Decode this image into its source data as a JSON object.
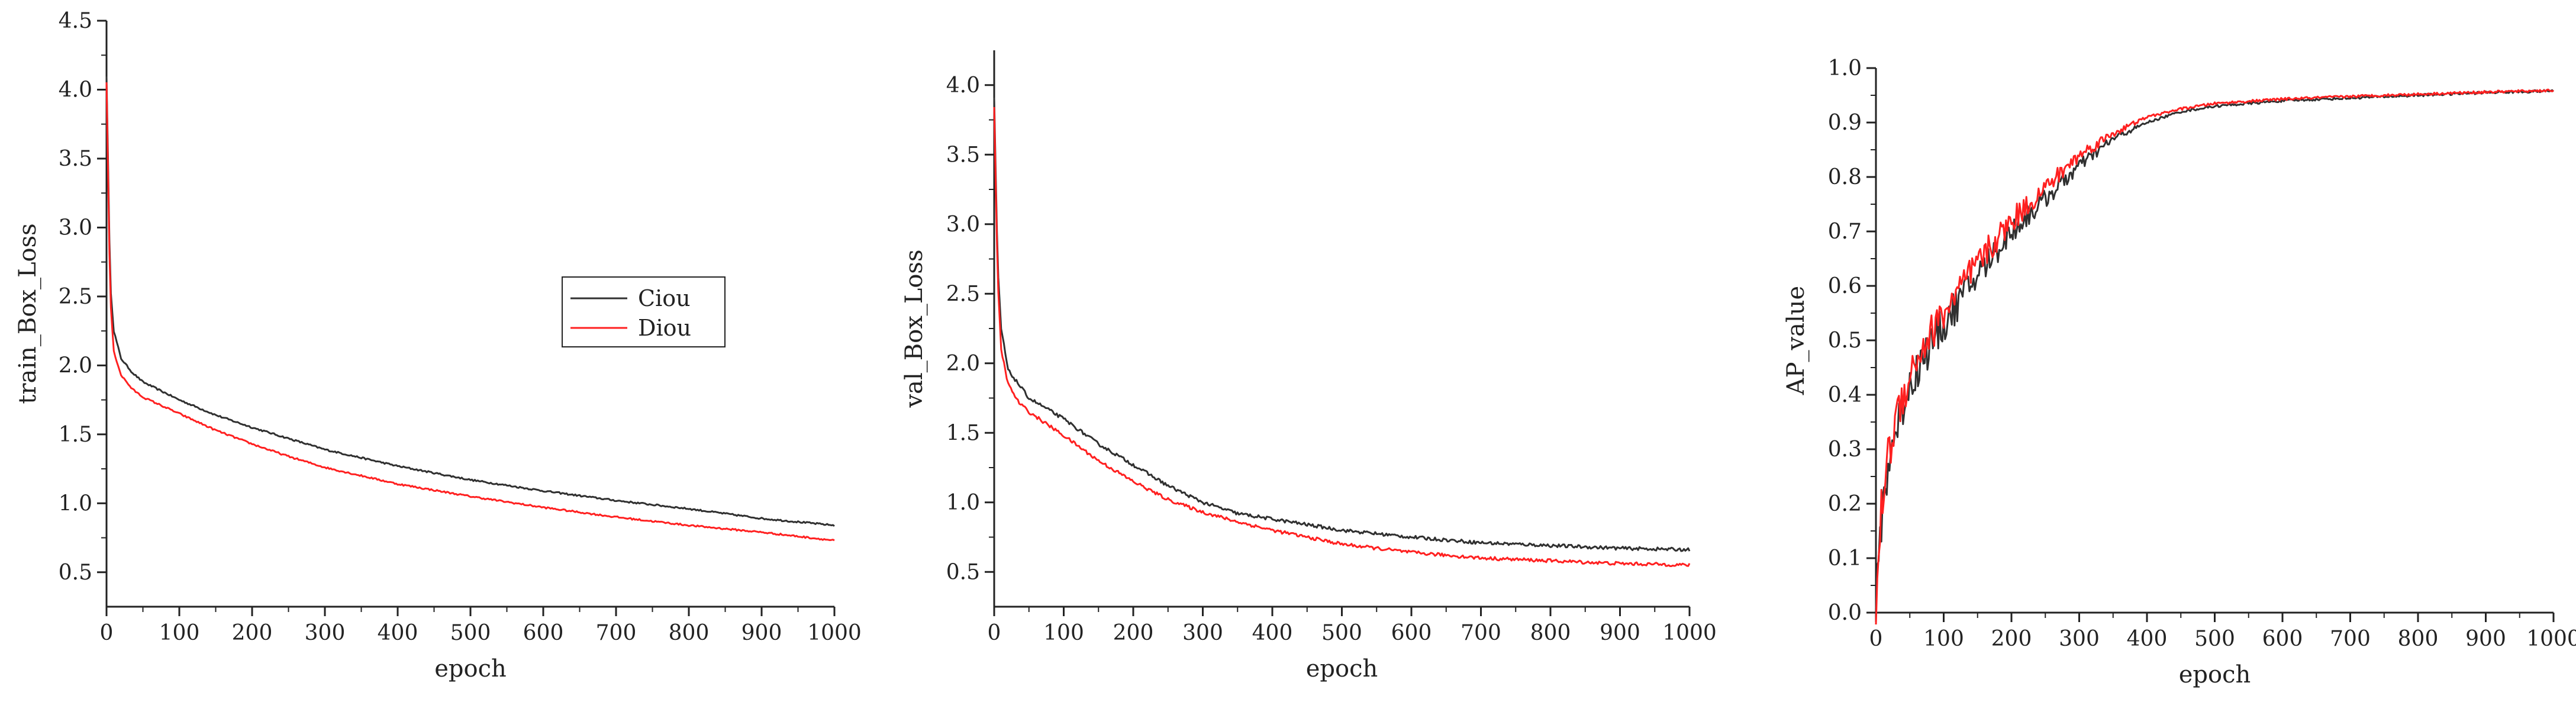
{
  "chart_data": [
    {
      "type": "line",
      "xlabel": "epoch",
      "ylabel": "train_Box_Loss",
      "xlim": [
        0,
        1000
      ],
      "ylim": [
        0.25,
        4.5
      ],
      "xticks": [
        0,
        100,
        200,
        300,
        400,
        500,
        600,
        700,
        800,
        900,
        1000
      ],
      "yticks": [
        0.5,
        1.0,
        1.5,
        2.0,
        2.5,
        3.0,
        3.5,
        4.0,
        4.5
      ],
      "ytick_labels": [
        "0.5",
        "1.0",
        "1.5",
        "2.0",
        "2.5",
        "3.0",
        "3.5",
        "4.0",
        "4.5"
      ],
      "legend": {
        "placement": "center-right",
        "entries": [
          "Ciou",
          "Diou"
        ]
      },
      "series": [
        {
          "name": "Ciou",
          "color": "#303030",
          "x": [
            0,
            5,
            10,
            20,
            35,
            50,
            100,
            150,
            200,
            250,
            300,
            400,
            500,
            600,
            700,
            800,
            900,
            1000
          ],
          "y": [
            4.1,
            2.6,
            2.25,
            2.05,
            1.95,
            1.88,
            1.75,
            1.64,
            1.55,
            1.47,
            1.39,
            1.27,
            1.17,
            1.09,
            1.02,
            0.96,
            0.89,
            0.84
          ]
        },
        {
          "name": "Diou",
          "color": "#ff2020",
          "x": [
            0,
            5,
            10,
            20,
            35,
            50,
            100,
            150,
            200,
            250,
            300,
            400,
            500,
            600,
            700,
            800,
            900,
            1000
          ],
          "y": [
            4.05,
            2.5,
            2.1,
            1.93,
            1.83,
            1.77,
            1.65,
            1.53,
            1.43,
            1.34,
            1.26,
            1.14,
            1.05,
            0.97,
            0.9,
            0.84,
            0.79,
            0.73
          ]
        }
      ]
    },
    {
      "type": "line",
      "xlabel": "epoch",
      "ylabel": "val_Box_Loss",
      "xlim": [
        0,
        1000
      ],
      "ylim": [
        0.25,
        4.25
      ],
      "xticks": [
        0,
        100,
        200,
        300,
        400,
        500,
        600,
        700,
        800,
        900,
        1000
      ],
      "yticks": [
        0.5,
        1.0,
        1.5,
        2.0,
        2.5,
        3.0,
        3.5,
        4.0
      ],
      "ytick_labels": [
        "0.5",
        "1.0",
        "1.5",
        "2.0",
        "2.5",
        "3.0",
        "3.5",
        "4.0"
      ],
      "series": [
        {
          "name": "Ciou",
          "color": "#303030",
          "x": [
            0,
            5,
            10,
            20,
            35,
            50,
            100,
            150,
            200,
            250,
            300,
            350,
            400,
            500,
            600,
            700,
            800,
            900,
            1000
          ],
          "y": [
            3.9,
            2.7,
            2.25,
            1.95,
            1.85,
            1.75,
            1.6,
            1.42,
            1.27,
            1.12,
            1.0,
            0.92,
            0.88,
            0.8,
            0.75,
            0.71,
            0.69,
            0.67,
            0.66
          ]
        },
        {
          "name": "Diou",
          "color": "#ff2020",
          "x": [
            0,
            5,
            10,
            20,
            35,
            50,
            100,
            150,
            200,
            250,
            300,
            350,
            400,
            500,
            600,
            700,
            800,
            900,
            1000
          ],
          "y": [
            3.85,
            2.6,
            2.1,
            1.85,
            1.72,
            1.65,
            1.48,
            1.3,
            1.15,
            1.02,
            0.93,
            0.86,
            0.8,
            0.7,
            0.64,
            0.6,
            0.58,
            0.56,
            0.55
          ]
        }
      ]
    },
    {
      "type": "line",
      "xlabel": "epoch",
      "ylabel": "AP_value",
      "xlim": [
        0,
        1000
      ],
      "ylim": [
        0.0,
        1.0
      ],
      "xticks": [
        0,
        100,
        200,
        300,
        400,
        500,
        600,
        700,
        800,
        900,
        1000
      ],
      "yticks": [
        0.0,
        0.1,
        0.2,
        0.3,
        0.4,
        0.5,
        0.6,
        0.7,
        0.8,
        0.9,
        1.0
      ],
      "ytick_labels": [
        "0.0",
        "0.1",
        "0.2",
        "0.3",
        "0.4",
        "0.5",
        "0.6",
        "0.7",
        "0.8",
        "0.9",
        "1.0"
      ],
      "series": [
        {
          "name": "Ciou",
          "color": "#303030",
          "x": [
            0,
            5,
            10,
            20,
            30,
            50,
            75,
            100,
            150,
            200,
            250,
            300,
            350,
            400,
            450,
            500,
            600,
            700,
            800,
            900,
            1000
          ],
          "y": [
            0.0,
            0.12,
            0.2,
            0.28,
            0.34,
            0.42,
            0.48,
            0.53,
            0.62,
            0.7,
            0.76,
            0.82,
            0.87,
            0.9,
            0.92,
            0.93,
            0.94,
            0.945,
            0.95,
            0.955,
            0.958
          ]
        },
        {
          "name": "Diou",
          "color": "#ff2020",
          "x": [
            0,
            5,
            10,
            20,
            30,
            50,
            75,
            100,
            150,
            200,
            250,
            300,
            350,
            400,
            450,
            500,
            600,
            700,
            800,
            900,
            1000
          ],
          "y": [
            0.0,
            0.13,
            0.22,
            0.3,
            0.36,
            0.44,
            0.5,
            0.55,
            0.64,
            0.72,
            0.78,
            0.84,
            0.88,
            0.91,
            0.925,
            0.935,
            0.943,
            0.948,
            0.952,
            0.956,
            0.959
          ]
        }
      ]
    }
  ]
}
